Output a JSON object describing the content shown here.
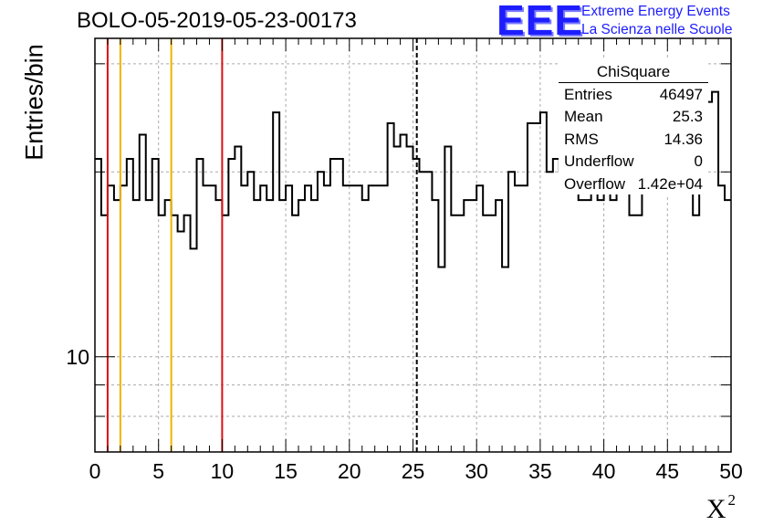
{
  "title": "BOLO-05-2019-05-23-00173",
  "logo": {
    "mark": "EEE",
    "line1": "Extreme Energy Events",
    "line2": "La Scienza nelle Scuole",
    "color": "#1d1dff"
  },
  "stats": {
    "title": "ChiSquare",
    "rows": [
      {
        "key": "Entries",
        "value": "46497"
      },
      {
        "key": "Mean",
        "value": "25.3"
      },
      {
        "key": "RMS",
        "value": "14.36"
      },
      {
        "key": "Underflow",
        "value": "0"
      },
      {
        "key": "Overflow",
        "value": "1.42e+04"
      }
    ]
  },
  "chart_data": {
    "type": "histogram",
    "title": "BOLO-05-2019-05-23-00173",
    "xlabel": "X",
    "xlabel_superscript": "2",
    "ylabel": "Entries/bin",
    "xlim": [
      0,
      50
    ],
    "ylim": [
      7,
      33
    ],
    "yscale": "log",
    "grid": true,
    "x_ticks": [
      0,
      5,
      10,
      15,
      20,
      25,
      30,
      35,
      40,
      45,
      50
    ],
    "y_tick_labels": [
      {
        "value": 10,
        "label": "10"
      }
    ],
    "bin_width": 0.5,
    "bin_start": 0,
    "values": [
      21,
      17,
      19,
      18,
      19,
      21,
      18,
      23,
      18,
      21,
      17,
      18,
      17,
      16,
      17,
      15,
      21,
      19,
      19,
      18,
      17,
      21,
      22,
      19,
      20,
      18,
      19,
      18,
      25,
      18,
      19,
      17,
      18,
      19,
      18,
      20,
      19,
      21,
      21,
      19,
      19,
      19,
      18,
      19,
      19,
      19,
      24,
      22,
      23,
      22,
      21,
      20,
      20,
      18,
      14,
      22,
      17,
      17,
      18,
      18,
      19,
      17,
      17,
      18,
      14,
      20,
      19,
      19,
      24,
      24,
      25,
      20,
      21,
      20,
      19,
      21,
      18,
      18,
      19,
      18,
      20,
      18,
      20,
      19,
      17,
      17,
      20,
      20,
      20,
      20,
      22,
      20,
      20,
      19,
      17,
      20,
      26,
      27,
      19,
      18
    ],
    "vertical_lines": [
      {
        "x": 1,
        "color": "#dd1111",
        "style": "solid"
      },
      {
        "x": 2,
        "color": "#f0b400",
        "style": "solid"
      },
      {
        "x": 6,
        "color": "#f0b400",
        "style": "solid"
      },
      {
        "x": 10,
        "color": "#dd1111",
        "style": "solid"
      },
      {
        "x": 25.3,
        "color": "#000000",
        "style": "dashed"
      }
    ],
    "legend": "top-right"
  }
}
